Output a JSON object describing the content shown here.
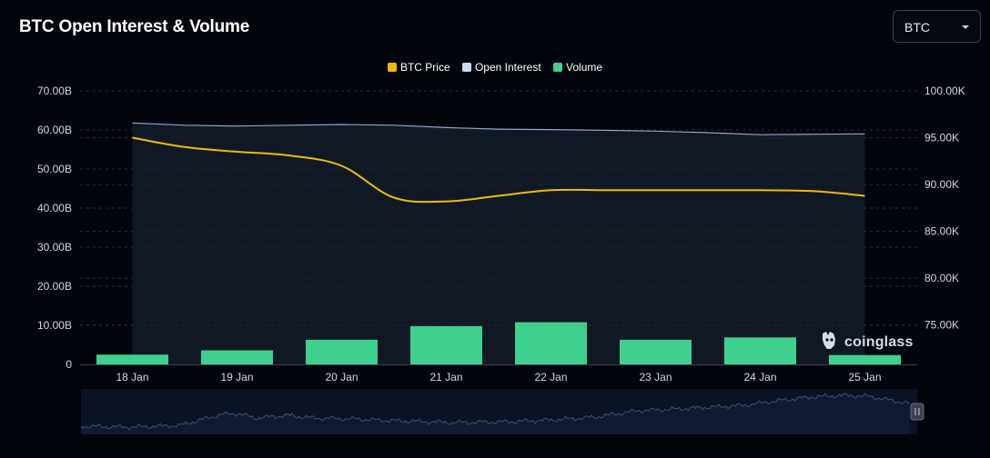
{
  "header": {
    "title": "BTC Open Interest & Volume"
  },
  "coin_select": {
    "value": "BTC"
  },
  "legend": [
    {
      "label": "BTC Price",
      "color": "#f0b90b"
    },
    {
      "label": "Open Interest",
      "color": "#c9d8f5"
    },
    {
      "label": "Volume",
      "color": "#3fcf8e"
    }
  ],
  "watermark": {
    "text": "coinglass"
  },
  "chart_data": {
    "type": "bar",
    "title": "BTC Open Interest & Volume",
    "categories": [
      "18 Jan",
      "19 Jan",
      "20 Jan",
      "21 Jan",
      "22 Jan",
      "23 Jan",
      "24 Jan",
      "25 Jan"
    ],
    "left_axis": {
      "ticks": [
        "0",
        "10.00B",
        "20.00B",
        "30.00B",
        "40.00B",
        "50.00B",
        "60.00B",
        "70.00B"
      ],
      "range": [
        0,
        70
      ]
    },
    "right_axis": {
      "ticks": [
        "75.00K",
        "80.00K",
        "85.00K",
        "90.00K",
        "95.00K",
        "100.00K"
      ],
      "range": [
        70.8,
        100
      ]
    },
    "grid": true,
    "legend_position": "top-center",
    "series": [
      {
        "name": "Volume",
        "type": "bar",
        "axis": "left",
        "unit": "B",
        "values": [
          2.5,
          3.6,
          6.3,
          9.8,
          10.8,
          6.3,
          6.9,
          2.4
        ]
      },
      {
        "name": "Open Interest",
        "type": "area",
        "axis": "left",
        "unit": "B",
        "x": [
          0,
          0.5,
          1,
          1.5,
          2,
          2.5,
          3,
          3.5,
          4,
          4.5,
          5,
          5.5,
          6,
          6.5,
          7
        ],
        "values": [
          61.8,
          61.2,
          61.0,
          61.2,
          61.4,
          61.2,
          60.6,
          60.2,
          60.1,
          59.9,
          59.7,
          59.3,
          58.8,
          58.9,
          59.0
        ]
      },
      {
        "name": "BTC Price",
        "type": "line",
        "axis": "right",
        "unit": "K",
        "x": [
          0,
          0.5,
          1,
          1.5,
          2,
          2.5,
          3,
          3.5,
          4,
          4.5,
          5,
          5.5,
          6,
          6.5,
          7
        ],
        "values": [
          95.0,
          94.0,
          93.5,
          93.1,
          92.0,
          88.6,
          88.2,
          88.8,
          89.4,
          89.4,
          89.4,
          89.4,
          89.4,
          89.3,
          88.8
        ]
      }
    ]
  }
}
